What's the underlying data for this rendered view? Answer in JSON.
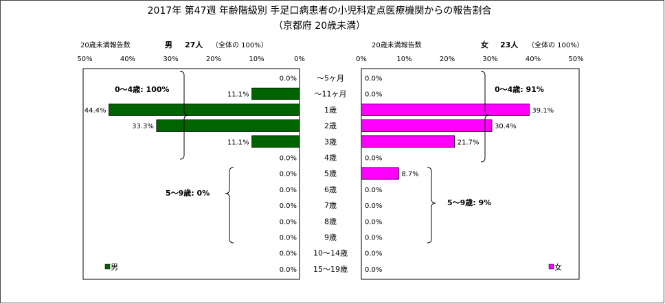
{
  "title": "2017年 第47週 年齢階級別 手足口病患者の小児科定点医療機関からの報告割合",
  "subtitle": "（京都府 20歳未満）",
  "colors": {
    "male": "#006400",
    "female": "#ff00ff",
    "border": "#000000"
  },
  "chart_data": {
    "type": "bar",
    "categories": [
      "～5ヶ月",
      "～11ヶ月",
      "1歳",
      "2歳",
      "3歳",
      "4歳",
      "5歳",
      "6歳",
      "7歳",
      "8歳",
      "9歳",
      "10～14歳",
      "15～19歳"
    ],
    "series": [
      {
        "name": "男",
        "values": [
          0.0,
          11.1,
          44.4,
          33.3,
          11.1,
          0.0,
          0.0,
          0.0,
          0.0,
          0.0,
          0.0,
          0.0,
          0.0
        ]
      },
      {
        "name": "女",
        "values": [
          0.0,
          0.0,
          39.1,
          30.4,
          21.7,
          0.0,
          8.7,
          0.0,
          0.0,
          0.0,
          0.0,
          0.0,
          0.0
        ]
      }
    ],
    "value_labels": {
      "male": [
        "0.0%",
        "11.1%",
        "44.4%",
        "33.3%",
        "11.1%",
        "0.0%",
        "0.0%",
        "0.0%",
        "0.0%",
        "0.0%",
        "0.0%",
        "0.0%",
        "0.0%"
      ],
      "female": [
        "0.0%",
        "0.0%",
        "39.1%",
        "30.4%",
        "21.7%",
        "0.0%",
        "8.7%",
        "0.0%",
        "0.0%",
        "0.0%",
        "0.0%",
        "0.0%",
        "0.0%"
      ]
    },
    "xlim": [
      0,
      50
    ],
    "tick_labels": [
      "0%",
      "10%",
      "20%",
      "30%",
      "40%",
      "50%"
    ],
    "male_header": {
      "left": "20歳未満報告数",
      "sex": "男",
      "count": "27人",
      "note": "（全体の 100%）"
    },
    "female_header": {
      "left": "20歳未満報告数",
      "sex": "女",
      "count": "23人",
      "note": "（全体の 100%）"
    },
    "annotations": {
      "male_0_4": "0～4歳: 100%",
      "male_5_9": "5～9歳: 0%",
      "female_0_4": "0～4歳: 91%",
      "female_5_9": "5～9歳: 9%"
    },
    "legend": {
      "male": "男",
      "female": "女"
    }
  }
}
